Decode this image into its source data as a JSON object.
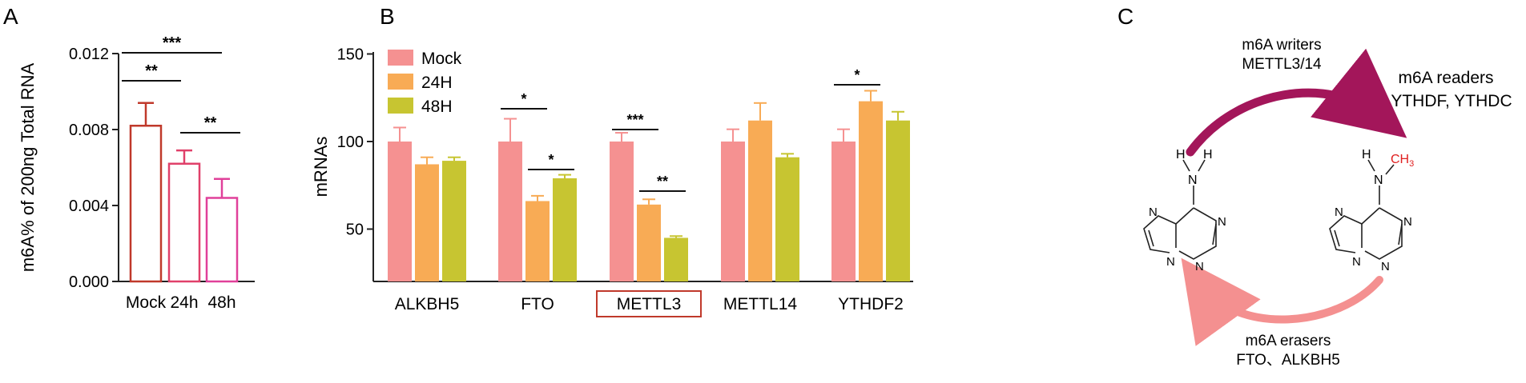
{
  "chart_data": [
    {
      "type": "bar",
      "panel_label": "A",
      "ylabel": "m6A% of 200ng Total RNA",
      "xlabel": "",
      "categories": [
        "Mock",
        "24h",
        "48h"
      ],
      "values": [
        0.0082,
        0.0062,
        0.0044
      ],
      "errors": [
        0.0012,
        0.0007,
        0.001
      ],
      "ylim": [
        0,
        0.012
      ],
      "yticks": [
        "0.000",
        "0.004",
        "0.008",
        "0.012"
      ],
      "colors": [
        "#c0392b",
        "#e0406a",
        "#e0409a"
      ],
      "significance": [
        {
          "from": "Mock",
          "to": "48h",
          "label": "***"
        },
        {
          "from": "Mock",
          "to": "24h",
          "label": "**"
        },
        {
          "from": "24h",
          "to": "48h",
          "label": "**"
        }
      ]
    },
    {
      "type": "bar",
      "panel_label": "B",
      "ylabel": "mRNAs",
      "xlabel": "",
      "categories": [
        "ALKBH5",
        "FTO",
        "METTL3",
        "METTL14",
        "YTHDF2"
      ],
      "highlighted_category": "METTL3",
      "series": [
        {
          "name": "Mock",
          "color": "#f59191",
          "values": [
            100,
            100,
            100,
            100,
            100
          ],
          "errors": [
            8,
            13,
            5,
            7,
            7
          ]
        },
        {
          "name": "24H",
          "color": "#f8ab55",
          "values": [
            87,
            66,
            64,
            112,
            123
          ],
          "errors": [
            4,
            3,
            3,
            10,
            6
          ]
        },
        {
          "name": "48H",
          "color": "#c7c531",
          "values": [
            89,
            79,
            45,
            91,
            112
          ],
          "errors": [
            2,
            2,
            1,
            2,
            5
          ]
        }
      ],
      "ylim": [
        25,
        150
      ],
      "yticks": [
        "50",
        "100",
        "150"
      ],
      "significance": [
        {
          "category": "FTO",
          "from": "Mock",
          "to": "24H",
          "label": "*"
        },
        {
          "category": "FTO",
          "from": "24H",
          "to": "48H",
          "label": "*"
        },
        {
          "category": "METTL3",
          "from": "Mock",
          "to": "24H",
          "label": "***"
        },
        {
          "category": "METTL3",
          "from": "24H",
          "to": "48H",
          "label": "**"
        },
        {
          "category": "YTHDF2",
          "from": "Mock",
          "to": "24H",
          "label": "*"
        }
      ]
    }
  ],
  "panel_c": {
    "label": "C",
    "writers_title": "m6A writers",
    "writers_name": "METTL3/14",
    "readers_title": "m6A readers",
    "readers_name": "YTHDF, YTHDC",
    "erasers_title": "m6A erasers",
    "erasers_name": "FTO、ALKBH5",
    "methyl_label": "CH",
    "methyl_subscript": "3",
    "atom_n": "N",
    "atom_h": "H",
    "writers_arrow_color": "#a3165a",
    "erasers_arrow_color": "#f49090",
    "methyl_color": "#e02020"
  }
}
